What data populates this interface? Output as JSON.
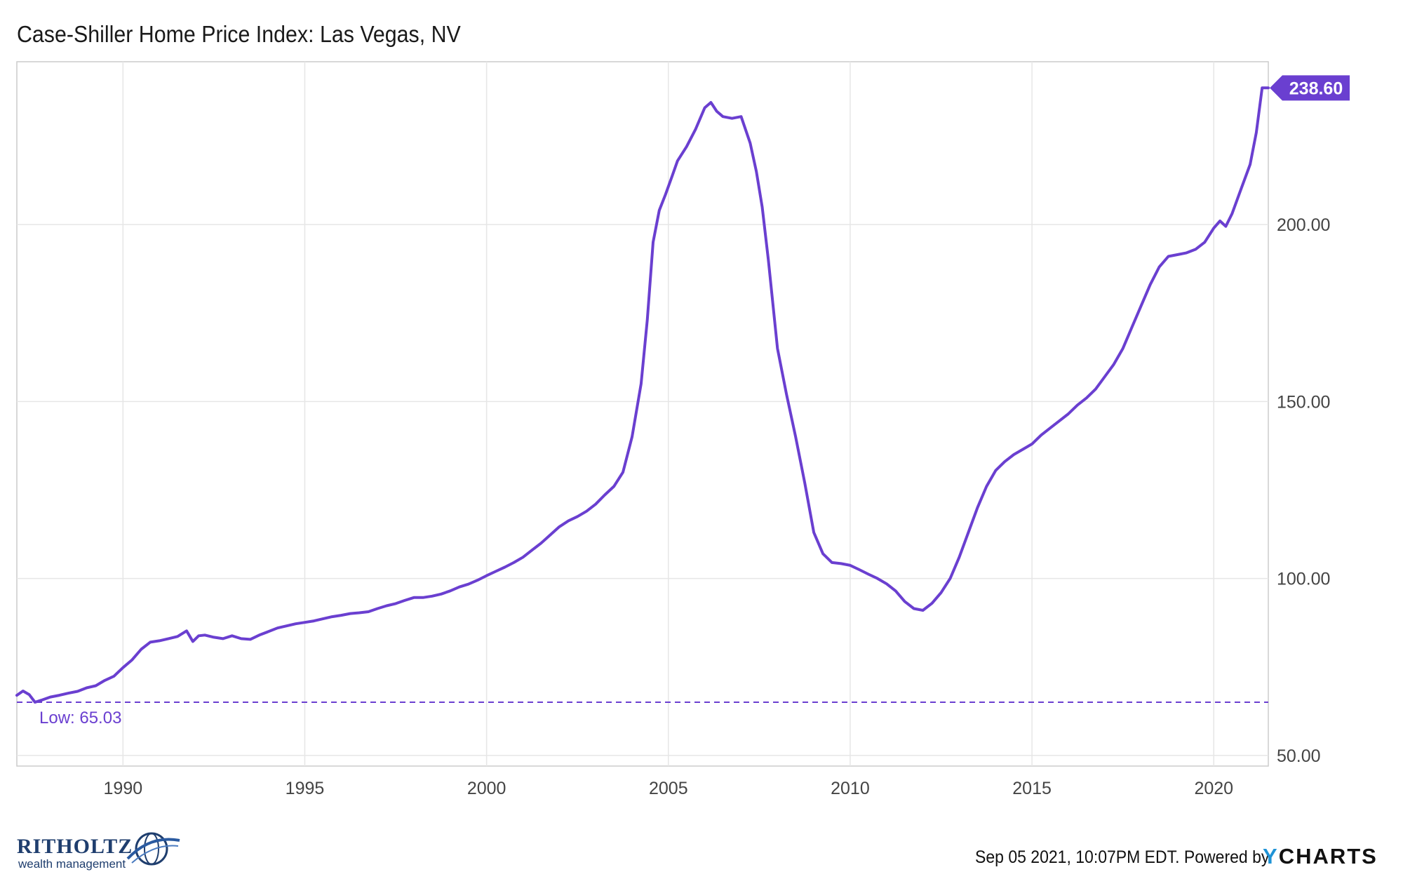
{
  "title": "Case-Shiller Home Price Index: Las Vegas, NV",
  "footer": {
    "timestamp": "Sep 05 2021, 10:07PM EDT.",
    "powered_by": "Powered by",
    "brand_y": "Y",
    "brand_rest": "CHARTS"
  },
  "logo": {
    "name": "RITHOLTZ",
    "subtitle": "wealth management",
    "icon": "globe-swoosh-icon"
  },
  "colors": {
    "series": "#6a3fd0",
    "grid": "#e6e6e6",
    "axis": "#cccccc"
  },
  "chart_data": {
    "type": "line",
    "title": "Case-Shiller Home Price Index: Las Vegas, NV",
    "xlabel": "",
    "ylabel": "",
    "xlim": [
      1987.08,
      2021.5
    ],
    "ylim": [
      47,
      246
    ],
    "x_ticks": [
      1990,
      1995,
      2000,
      2005,
      2010,
      2015,
      2020
    ],
    "y_ticks": [
      50,
      100,
      150,
      200
    ],
    "y_tick_labels": [
      "50.00",
      "100.00",
      "150.00",
      "200.00"
    ],
    "grid": true,
    "y_axis_position": "right",
    "low": {
      "value": 65.03,
      "label": "Low: 65.03"
    },
    "last": {
      "value": 238.6,
      "label": "238.60"
    },
    "series": [
      {
        "x": [
          1987.08,
          1987.25,
          1987.42,
          1987.58,
          1987.75,
          1988.0,
          1988.25,
          1988.5,
          1988.75,
          1989.0,
          1989.25,
          1989.5,
          1989.75,
          1990.0,
          1990.25,
          1990.5,
          1990.75,
          1991.0,
          1991.25,
          1991.5,
          1991.75,
          1991.92,
          1992.08,
          1992.25,
          1992.5,
          1992.75,
          1993.0,
          1993.25,
          1993.5,
          1993.75,
          1994.0,
          1994.25,
          1994.5,
          1994.75,
          1995.0,
          1995.25,
          1995.5,
          1995.75,
          1996.0,
          1996.25,
          1996.5,
          1996.75,
          1997.0,
          1997.25,
          1997.5,
          1997.75,
          1998.0,
          1998.25,
          1998.5,
          1998.75,
          1999.0,
          1999.25,
          1999.5,
          1999.75,
          2000.0,
          2000.25,
          2000.5,
          2000.75,
          2001.0,
          2001.25,
          2001.5,
          2001.75,
          2002.0,
          2002.25,
          2002.5,
          2002.75,
          2003.0,
          2003.25,
          2003.5,
          2003.75,
          2004.0,
          2004.25,
          2004.42,
          2004.58,
          2004.75,
          2004.92,
          2005.08,
          2005.25,
          2005.5,
          2005.75,
          2006.0,
          2006.17,
          2006.33,
          2006.5,
          2006.75,
          2007.0,
          2007.25,
          2007.42,
          2007.58,
          2007.75,
          2008.0,
          2008.25,
          2008.5,
          2008.75,
          2009.0,
          2009.25,
          2009.5,
          2009.75,
          2010.0,
          2010.25,
          2010.5,
          2010.75,
          2011.0,
          2011.25,
          2011.5,
          2011.75,
          2012.0,
          2012.25,
          2012.5,
          2012.75,
          2013.0,
          2013.25,
          2013.5,
          2013.75,
          2014.0,
          2014.25,
          2014.5,
          2014.75,
          2015.0,
          2015.25,
          2015.5,
          2015.75,
          2016.0,
          2016.25,
          2016.5,
          2016.75,
          2017.0,
          2017.25,
          2017.5,
          2017.75,
          2018.0,
          2018.25,
          2018.5,
          2018.75,
          2019.0,
          2019.25,
          2019.5,
          2019.75,
          2020.0,
          2020.17,
          2020.33,
          2020.5,
          2020.75,
          2021.0,
          2021.17,
          2021.33,
          2021.5
        ],
        "values": [
          67.0,
          68.2,
          67.2,
          65.03,
          65.6,
          66.5,
          67.0,
          67.6,
          68.1,
          69.1,
          69.7,
          71.2,
          72.4,
          74.8,
          77.0,
          80.0,
          82.0,
          82.4,
          83.0,
          83.6,
          85.2,
          82.2,
          83.8,
          84.0,
          83.4,
          83.0,
          83.8,
          83.0,
          82.8,
          84.0,
          85.0,
          86.0,
          86.6,
          87.2,
          87.6,
          88.0,
          88.6,
          89.2,
          89.6,
          90.1,
          90.3,
          90.6,
          91.5,
          92.3,
          92.9,
          93.8,
          94.6,
          94.6,
          95.0,
          95.6,
          96.5,
          97.6,
          98.4,
          99.5,
          100.8,
          102.0,
          103.2,
          104.5,
          106.0,
          108.0,
          110.0,
          112.3,
          114.6,
          116.3,
          117.5,
          119.0,
          121.0,
          123.6,
          126.0,
          130.0,
          140.0,
          155.0,
          173.0,
          195.0,
          204.0,
          208.5,
          213.0,
          218.0,
          222.0,
          227.0,
          233.0,
          234.5,
          232.0,
          230.5,
          230.0,
          230.5,
          223.0,
          215.0,
          205.0,
          190.0,
          165.0,
          152.0,
          140.0,
          127.0,
          113.0,
          107.0,
          104.5,
          104.2,
          103.7,
          102.5,
          101.2,
          100.0,
          98.5,
          96.5,
          93.5,
          91.5,
          91.0,
          93.0,
          96.0,
          100.0,
          106.0,
          113.0,
          120.0,
          126.0,
          130.5,
          133.0,
          135.0,
          136.5,
          138.0,
          140.5,
          142.5,
          144.5,
          146.5,
          149.0,
          151.0,
          153.5,
          157.0,
          160.5,
          165.0,
          171.0,
          177.0,
          183.0,
          188.0,
          191.0,
          191.5,
          192.0,
          193.0,
          195.0,
          199.0,
          201.0,
          199.5,
          203.0,
          210.0,
          217.0,
          226.0,
          238.6,
          238.6
        ]
      }
    ]
  }
}
